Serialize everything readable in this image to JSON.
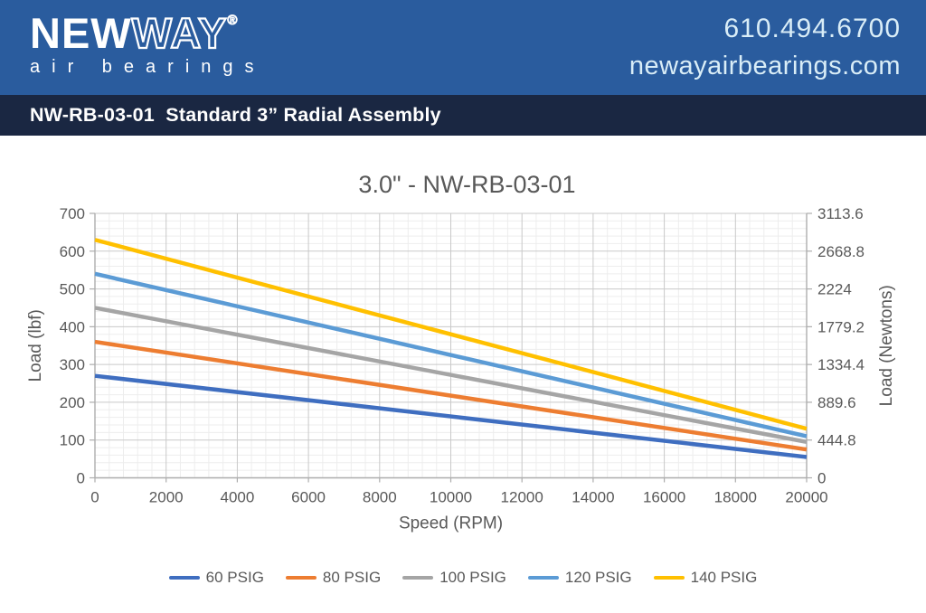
{
  "header": {
    "logo": {
      "new": "NEW",
      "way": "WAY",
      "registered": "®",
      "tagline": "air bearings"
    },
    "phone": "610.494.6700",
    "website": "newayairbearings.com",
    "colors": {
      "banner_bg": "#2A5C9E",
      "bar_bg": "#1A2742",
      "text": "#D9EDF7"
    }
  },
  "title_bar": {
    "label": "NW-RB-03-01  Standard 3” Radial Assembly"
  },
  "chart_data": {
    "type": "line",
    "title": "3.0\" -  NW-RB-03-01",
    "xlabel": "Speed (RPM)",
    "ylabel_left": "Load (lbf)",
    "ylabel_right": "Load (Newtons)",
    "xlim": [
      0,
      20000
    ],
    "ylim_left": [
      0,
      700
    ],
    "ylim_right": [
      0,
      3113.6
    ],
    "x_ticks": [
      0,
      2000,
      4000,
      6000,
      8000,
      10000,
      12000,
      14000,
      16000,
      18000,
      20000
    ],
    "y_ticks_left": [
      0,
      100,
      200,
      300,
      400,
      500,
      600,
      700
    ],
    "y_ticks_right": [
      "0",
      "444.8",
      "889.6",
      "1334.4",
      "1779.2",
      "2224",
      "2668.8",
      "3113.6"
    ],
    "grid": {
      "major": true,
      "minor": true,
      "x_minor_step": 400,
      "y_minor_step": 20
    },
    "legend_position": "bottom",
    "series": [
      {
        "name": "60 PSIG",
        "color": "#3F6EC0",
        "points": [
          [
            0,
            270
          ],
          [
            20000,
            55
          ]
        ]
      },
      {
        "name": "80 PSIG",
        "color": "#ED7D31",
        "points": [
          [
            0,
            360
          ],
          [
            20000,
            75
          ]
        ]
      },
      {
        "name": "100 PSIG",
        "color": "#A5A5A5",
        "points": [
          [
            0,
            450
          ],
          [
            20000,
            95
          ]
        ]
      },
      {
        "name": "120 PSIG",
        "color": "#5B9BD5",
        "points": [
          [
            0,
            540
          ],
          [
            20000,
            110
          ]
        ]
      },
      {
        "name": "140 PSIG",
        "color": "#FFC000",
        "points": [
          [
            0,
            630
          ],
          [
            20000,
            130
          ]
        ]
      }
    ],
    "colors": {
      "text": "#595959",
      "grid_major": "#C9C9C9",
      "grid_minor": "#EDEDED",
      "axis": "#ADADAD"
    }
  }
}
